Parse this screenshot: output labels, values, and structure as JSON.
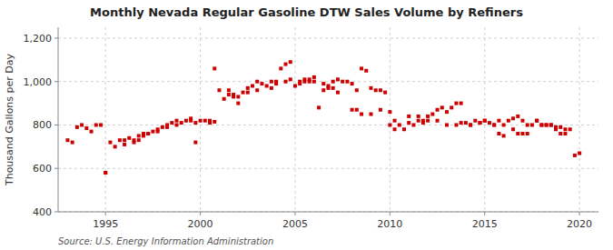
{
  "chart_data": {
    "type": "scatter",
    "title": "Monthly Nevada Regular Gasoline DTW Sales Volume by Refiners",
    "y_label": "Thousand Gallons per Day",
    "annotations": [
      "Source: U.S. Energy Information Administration"
    ],
    "color": "#CC0000",
    "marker": "square",
    "grid": true,
    "xlim": [
      1992.5,
      2021.0
    ],
    "ylim": [
      400,
      1250
    ],
    "xticks": [
      1995,
      2000,
      2005,
      2010,
      2015,
      2020
    ],
    "yticks": [
      400,
      600,
      800,
      {
        "value": 1000,
        "label": "1,000"
      },
      {
        "value": 1200,
        "label": "1,200"
      }
    ],
    "x": [
      1993.25,
      1993.5,
      1993.75,
      1994.0,
      1994.25,
      1994.5,
      1994.75,
      1995.0,
      1995.25,
      1995.5,
      1995.75,
      1996.0,
      1996.25,
      1996.5,
      1996.75,
      1997.0,
      1997.25,
      1997.5,
      1997.75,
      1998.0,
      1998.25,
      1998.5,
      1998.75,
      1999.0,
      1999.25,
      1999.5,
      1999.75,
      2000.0,
      2000.25,
      2000.5,
      2000.75,
      2001.0,
      2001.25,
      2001.5,
      2001.75,
      2002.0,
      2002.25,
      2002.5,
      2002.75,
      2003.0,
      2003.25,
      2003.5,
      2003.75,
      2004.0,
      2004.25,
      2004.5,
      2004.75,
      2005.0,
      2005.25,
      2005.5,
      2005.75,
      2006.0,
      2006.25,
      2006.5,
      2006.75,
      2007.0,
      2007.25,
      2007.5,
      2007.75,
      2008.0,
      2008.25,
      2008.5,
      2008.75,
      2009.0,
      2009.25,
      2009.5,
      2009.75,
      2010.0,
      2010.25,
      2010.5,
      2010.75,
      2011.0,
      2011.25,
      2011.5,
      2011.75,
      2012.0,
      2012.25,
      2012.5,
      2012.75,
      2013.0,
      2013.25,
      2013.5,
      2013.75,
      2014.0,
      2014.25,
      2014.5,
      2014.75,
      2015.0,
      2015.25,
      2015.5,
      2015.75,
      2016.0,
      2016.25,
      2016.5,
      2016.75,
      2017.0,
      2017.25,
      2017.5,
      2017.75,
      2018.0,
      2018.25,
      2018.5,
      2018.75,
      2019.0,
      2019.25,
      2019.5,
      2019.75,
      2020.0,
      1993.0,
      1995.0,
      1996.0,
      1996.5,
      1996.75,
      1997.0,
      1997.25,
      1997.75,
      1998.25,
      1998.75,
      1999.5,
      1999.75,
      2000.5,
      2000.75,
      2001.5,
      2001.75,
      2002.0,
      2002.5,
      2003.0,
      2003.75,
      2004.0,
      2004.5,
      2004.75,
      2005.25,
      2005.5,
      2005.75,
      2006.0,
      2006.5,
      2006.75,
      2007.0,
      2007.25,
      2008.0,
      2008.25,
      2008.5,
      2009.0,
      2009.5,
      2010.0,
      2010.25,
      2011.0,
      2011.5,
      2011.75,
      2012.0,
      2012.5,
      2013.0,
      2013.5,
      2013.75,
      2014.25,
      2014.75,
      2015.0,
      2015.5,
      2015.75,
      2016.0,
      2016.5,
      2016.75,
      2017.0,
      2017.25,
      2017.75,
      2018.0,
      2018.25,
      2018.5,
      2018.75,
      2019.0,
      2019.25
    ],
    "values": [
      720,
      790,
      800,
      785,
      770,
      800,
      800,
      580,
      720,
      700,
      730,
      730,
      740,
      720,
      750,
      760,
      760,
      770,
      780,
      790,
      800,
      810,
      820,
      810,
      820,
      820,
      720,
      820,
      820,
      810,
      1060,
      960,
      920,
      940,
      930,
      900,
      950,
      970,
      980,
      1000,
      990,
      980,
      1000,
      1000,
      1060,
      1080,
      1090,
      980,
      990,
      1000,
      1010,
      1020,
      880,
      960,
      970,
      1000,
      1010,
      1000,
      1000,
      990,
      960,
      1060,
      1050,
      970,
      960,
      960,
      950,
      800,
      780,
      800,
      780,
      840,
      800,
      840,
      810,
      840,
      850,
      870,
      880,
      860,
      880,
      900,
      900,
      810,
      800,
      820,
      810,
      820,
      810,
      800,
      820,
      800,
      820,
      830,
      840,
      820,
      800,
      800,
      820,
      800,
      800,
      800,
      780,
      760,
      760,
      780,
      660,
      670,
      730,
      580,
      710,
      730,
      730,
      750,
      760,
      770,
      790,
      800,
      830,
      810,
      820,
      815,
      960,
      940,
      930,
      950,
      960,
      970,
      990,
      1000,
      1010,
      1000,
      1010,
      1000,
      1000,
      990,
      980,
      970,
      950,
      870,
      870,
      850,
      850,
      870,
      860,
      820,
      810,
      820,
      820,
      820,
      820,
      800,
      800,
      810,
      800,
      810,
      820,
      800,
      760,
      750,
      780,
      760,
      760,
      760,
      820,
      800,
      800,
      800,
      790,
      790,
      780
    ]
  }
}
